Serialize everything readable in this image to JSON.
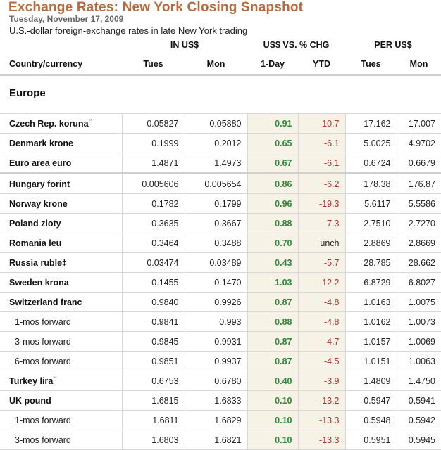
{
  "header": {
    "title": "Exchange Rates: New York Closing Snapshot",
    "date": "Tuesday, November 17, 2009",
    "subtitle": "U.S.-dollar foreign-exchange rates in late New York trading"
  },
  "column_groups": {
    "in_usd": "IN US$",
    "pct_chg": "US$ VS. % CHG",
    "per_usd": "PER US$"
  },
  "columns": {
    "country": "Country/currency",
    "in_tues": "Tues",
    "in_mon": "Mon",
    "one_day": "1-Day",
    "ytd": "YTD",
    "per_tues": "Tues",
    "per_mon": "Mon"
  },
  "section": "Europe",
  "colors": {
    "title": "#b86a3c",
    "positive": "#2a8a3a",
    "negative": "#b03030",
    "pct_bg": "#f7f2e6"
  },
  "rows": [
    {
      "name": "Czech Rep. koruna",
      "note": "**",
      "in_tues": "0.05827",
      "in_mon": "0.05880",
      "one_day": "0.91",
      "ytd": "-10.7",
      "per_tues": "17.162",
      "per_mon": "17.007"
    },
    {
      "name": "Denmark krone",
      "note": "",
      "in_tues": "0.1999",
      "in_mon": "0.2012",
      "one_day": "0.65",
      "ytd": "-6.1",
      "per_tues": "5.0025",
      "per_mon": "4.9702"
    },
    {
      "name": "Euro area euro",
      "note": "",
      "in_tues": "1.4871",
      "in_mon": "1.4973",
      "one_day": "0.67",
      "ytd": "-6.1",
      "per_tues": "0.6724",
      "per_mon": "0.6679"
    },
    {
      "name": "Hungary forint",
      "note": "",
      "in_tues": "0.005606",
      "in_mon": "0.005654",
      "one_day": "0.86",
      "ytd": "-6.2",
      "per_tues": "178.38",
      "per_mon": "176.87"
    },
    {
      "name": "Norway krone",
      "note": "",
      "in_tues": "0.1782",
      "in_mon": "0.1799",
      "one_day": "0.96",
      "ytd": "-19.3",
      "per_tues": "5.6117",
      "per_mon": "5.5586"
    },
    {
      "name": "Poland zloty",
      "note": "",
      "in_tues": "0.3635",
      "in_mon": "0.3667",
      "one_day": "0.88",
      "ytd": "-7.3",
      "per_tues": "2.7510",
      "per_mon": "2.7270"
    },
    {
      "name": "Romania leu",
      "note": "",
      "in_tues": "0.3464",
      "in_mon": "0.3488",
      "one_day": "0.70",
      "ytd": "unch",
      "per_tues": "2.8869",
      "per_mon": "2.8669"
    },
    {
      "name": "Russia ruble",
      "note": "‡",
      "in_tues": "0.03474",
      "in_mon": "0.03489",
      "one_day": "0.43",
      "ytd": "-5.7",
      "per_tues": "28.785",
      "per_mon": "28.662"
    },
    {
      "name": "Sweden krona",
      "note": "",
      "in_tues": "0.1455",
      "in_mon": "0.1470",
      "one_day": "1.03",
      "ytd": "-12.2",
      "per_tues": "6.8729",
      "per_mon": "6.8027"
    },
    {
      "name": "Switzerland franc",
      "note": "",
      "in_tues": "0.9840",
      "in_mon": "0.9926",
      "one_day": "0.87",
      "ytd": "-4.8",
      "per_tues": "1.0163",
      "per_mon": "1.0075"
    },
    {
      "name": "1-mos forward",
      "note": "",
      "in_tues": "0.9841",
      "in_mon": "0.993",
      "one_day": "0.88",
      "ytd": "-4.8",
      "per_tues": "1.0162",
      "per_mon": "1.0073"
    },
    {
      "name": "3-mos forward",
      "note": "",
      "in_tues": "0.9845",
      "in_mon": "0.9931",
      "one_day": "0.87",
      "ytd": "-4.7",
      "per_tues": "1.0157",
      "per_mon": "1.0069"
    },
    {
      "name": "6-mos forward",
      "note": "",
      "in_tues": "0.9851",
      "in_mon": "0.9937",
      "one_day": "0.87",
      "ytd": "-4.5",
      "per_tues": "1.0151",
      "per_mon": "1.0063"
    },
    {
      "name": "Turkey lira",
      "note": "**",
      "in_tues": "0.6753",
      "in_mon": "0.6780",
      "one_day": "0.40",
      "ytd": "-3.9",
      "per_tues": "1.4809",
      "per_mon": "1.4750"
    },
    {
      "name": "UK pound",
      "note": "",
      "in_tues": "1.6815",
      "in_mon": "1.6833",
      "one_day": "0.10",
      "ytd": "-13.2",
      "per_tues": "0.5947",
      "per_mon": "0.5941"
    },
    {
      "name": "1-mos forward",
      "note": "",
      "in_tues": "1.6811",
      "in_mon": "1.6829",
      "one_day": "0.10",
      "ytd": "-13.3",
      "per_tues": "0.5948",
      "per_mon": "0.5942"
    },
    {
      "name": "3-mos forward",
      "note": "",
      "in_tues": "1.6803",
      "in_mon": "1.6821",
      "one_day": "0.10",
      "ytd": "-13.3",
      "per_tues": "0.5951",
      "per_mon": "0.5945"
    }
  ]
}
